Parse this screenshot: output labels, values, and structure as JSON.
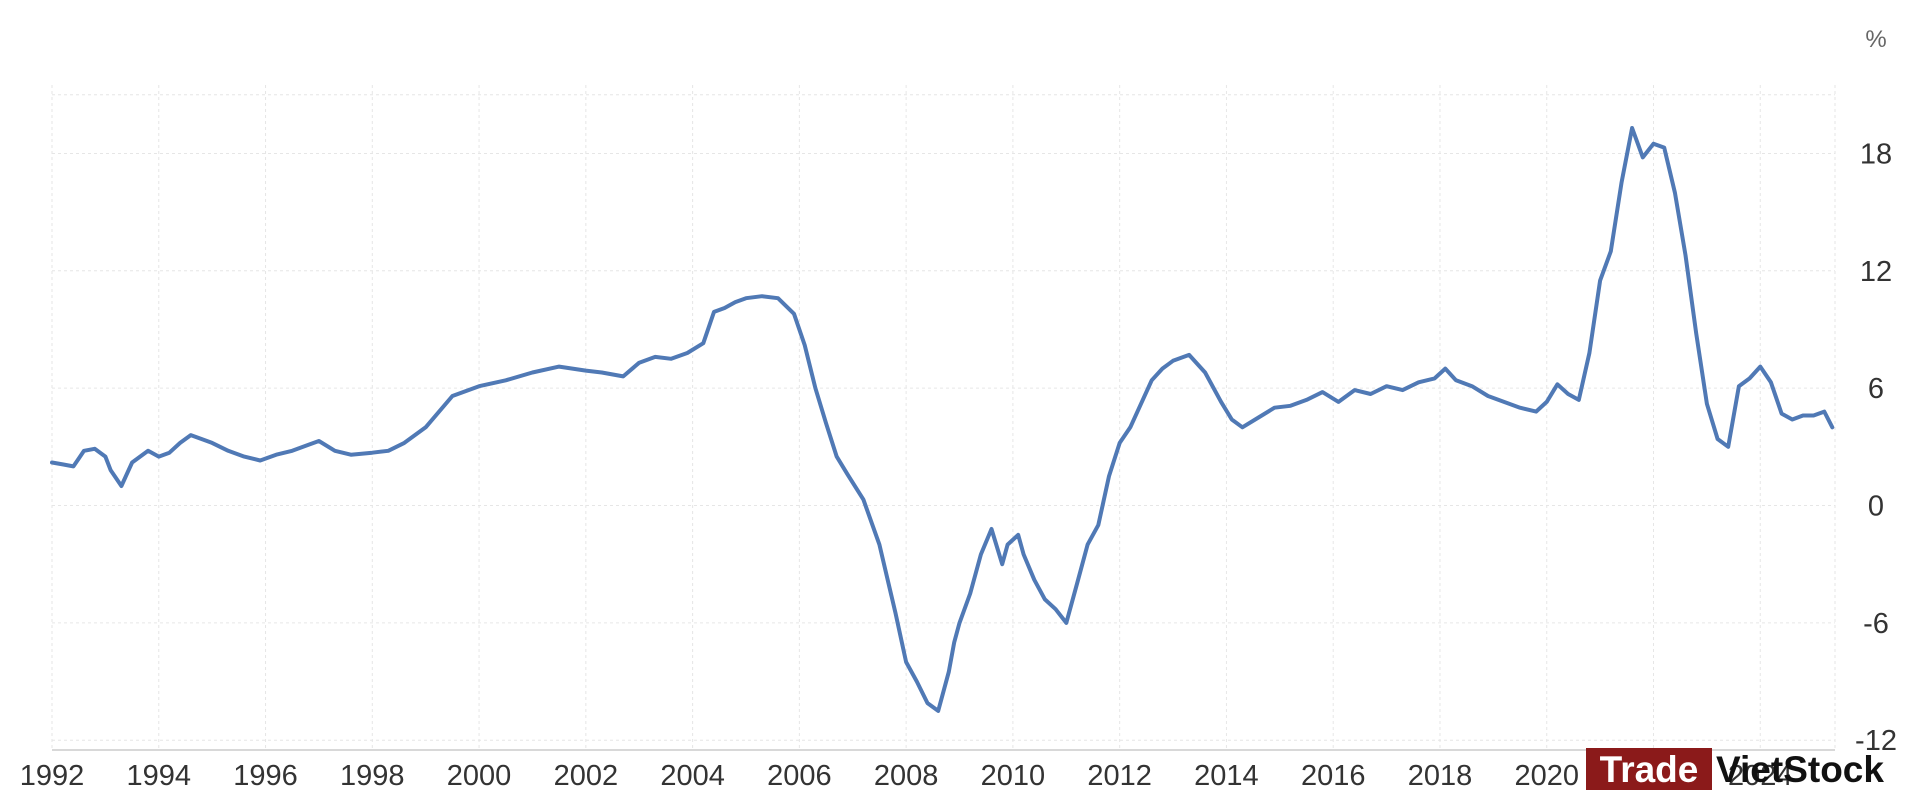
{
  "chart_data": {
    "type": "line",
    "title": "",
    "xlabel": "",
    "ylabel": "",
    "unit": "%",
    "xlim": [
      1992.0,
      2025.4
    ],
    "ylim": [
      -12.5,
      21.5
    ],
    "x_ticks": [
      1992,
      1994,
      1996,
      1998,
      2000,
      2002,
      2004,
      2006,
      2008,
      2010,
      2012,
      2014,
      2016,
      2018,
      2020,
      2022,
      2024
    ],
    "y_ticks": [
      -12,
      -6,
      0,
      6,
      12,
      18
    ],
    "grid": true,
    "legend": "none",
    "colors": {
      "line": "#5079B5",
      "grid": "#e6e6e6",
      "axis_text": "#333333"
    },
    "series": [
      {
        "x": [
          1992.0,
          1992.2,
          1992.4,
          1992.5,
          1992.6,
          1992.8,
          1993.0,
          1993.1,
          1993.3,
          1993.5,
          1993.8,
          1994.0,
          1994.2,
          1994.4,
          1994.6,
          1994.8,
          1995.0,
          1995.3,
          1995.6,
          1995.9,
          1996.2,
          1996.5,
          1996.8,
          1997.0,
          1997.3,
          1997.6,
          1998.0,
          1998.3,
          1998.6,
          1999.0,
          1999.5,
          2000.0,
          2000.5,
          2001.0,
          2001.5,
          2002.0,
          2002.3,
          2002.7,
          2003.0,
          2003.3,
          2003.6,
          2003.9,
          2004.2,
          2004.4,
          2004.6,
          2004.8,
          2005.0,
          2005.3,
          2005.6,
          2005.9,
          2006.1,
          2006.3,
          2006.5,
          2006.7,
          2006.9,
          2007.2,
          2007.5,
          2007.8,
          2008.0,
          2008.2,
          2008.4,
          2008.6,
          2008.8,
          2008.9,
          2009.0,
          2009.2,
          2009.4,
          2009.6,
          2009.8,
          2009.9,
          2010.1,
          2010.2,
          2010.4,
          2010.6,
          2010.8,
          2011.0,
          2011.2,
          2011.4,
          2011.6,
          2011.8,
          2012.0,
          2012.2,
          2012.4,
          2012.6,
          2012.8,
          2013.0,
          2013.3,
          2013.6,
          2013.9,
          2014.1,
          2014.3,
          2014.6,
          2014.9,
          2015.2,
          2015.5,
          2015.8,
          2016.1,
          2016.4,
          2016.7,
          2017.0,
          2017.3,
          2017.6,
          2017.9,
          2018.1,
          2018.3,
          2018.6,
          2018.9,
          2019.2,
          2019.5,
          2019.8,
          2020.0,
          2020.2,
          2020.4,
          2020.6,
          2020.8,
          2021.0,
          2021.2,
          2021.4,
          2021.6,
          2021.8,
          2022.0,
          2022.2,
          2022.4,
          2022.6,
          2022.8,
          2023.0,
          2023.2,
          2023.4,
          2023.6,
          2023.8,
          2024.0,
          2024.2,
          2024.4,
          2024.6,
          2024.8,
          2025.0,
          2025.2,
          2025.35
        ],
        "y": [
          2.2,
          2.1,
          2.0,
          2.4,
          2.8,
          2.9,
          2.5,
          1.8,
          1.0,
          2.2,
          2.8,
          2.5,
          2.7,
          3.2,
          3.6,
          3.4,
          3.2,
          2.8,
          2.5,
          2.3,
          2.6,
          2.8,
          3.1,
          3.3,
          2.8,
          2.6,
          2.7,
          2.8,
          3.2,
          4.0,
          5.6,
          6.1,
          6.4,
          6.8,
          7.1,
          6.9,
          6.8,
          6.6,
          7.3,
          7.6,
          7.5,
          7.8,
          8.3,
          9.9,
          10.1,
          10.4,
          10.6,
          10.7,
          10.6,
          9.8,
          8.2,
          6.0,
          4.2,
          2.5,
          1.6,
          0.3,
          -2.0,
          -5.5,
          -8.0,
          -9.0,
          -10.1,
          -10.5,
          -8.5,
          -7.0,
          -6.0,
          -4.5,
          -2.5,
          -1.2,
          -3.0,
          -2.0,
          -1.5,
          -2.5,
          -3.8,
          -4.8,
          -5.3,
          -6.0,
          -4.0,
          -2.0,
          -1.0,
          1.5,
          3.2,
          4.0,
          5.2,
          6.4,
          7.0,
          7.4,
          7.7,
          6.8,
          5.3,
          4.4,
          4.0,
          4.5,
          5.0,
          5.1,
          5.4,
          5.8,
          5.3,
          5.9,
          5.7,
          6.1,
          5.9,
          6.3,
          6.5,
          7.0,
          6.4,
          6.1,
          5.6,
          5.3,
          5.0,
          4.8,
          5.3,
          6.2,
          5.7,
          5.4,
          7.8,
          11.5,
          13.0,
          16.5,
          19.3,
          17.8,
          18.5,
          18.3,
          16.0,
          12.8,
          8.8,
          5.2,
          3.4,
          3.0,
          6.1,
          6.5,
          7.1,
          6.3,
          4.7,
          4.4,
          4.6,
          4.6,
          4.8,
          4.0
        ]
      }
    ]
  },
  "watermark": {
    "part1": "Trade",
    "part2": "VietStock",
    "colors": {
      "box": "#8B1A1A",
      "part1": "#ffffff",
      "part2": "#111111"
    }
  }
}
